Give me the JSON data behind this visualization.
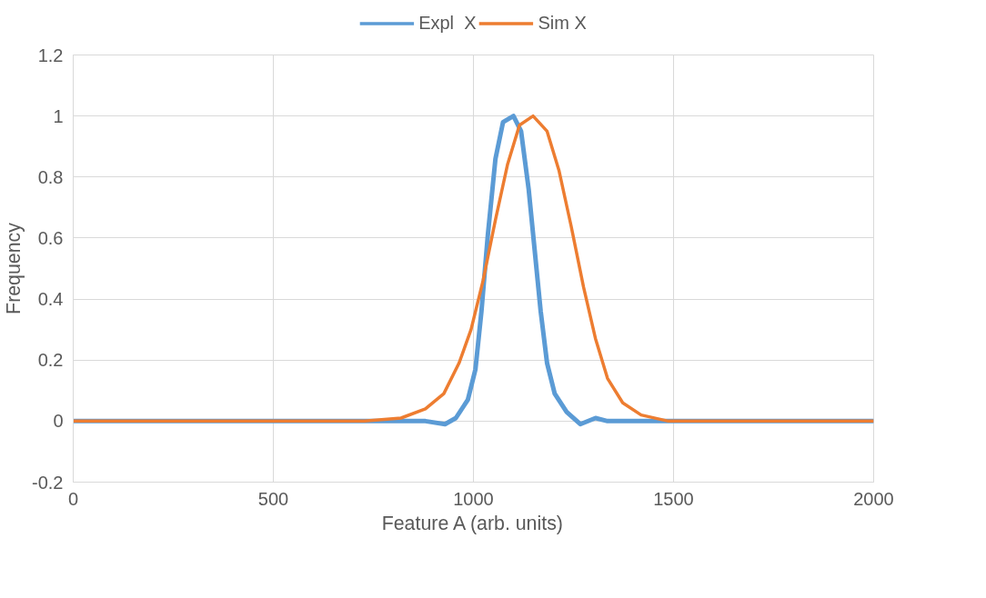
{
  "chart_data": {
    "type": "line",
    "xlabel": "Feature A (arb. units)",
    "ylabel": "Frequency",
    "xlim": [
      0,
      2000
    ],
    "xticks": [
      0,
      500,
      1000,
      1500,
      2000
    ],
    "ylim": [
      -0.2,
      1.2
    ],
    "yticks": [
      -0.2,
      0,
      0.2,
      0.4,
      0.6,
      0.8,
      1,
      1.2
    ],
    "grid": true,
    "legend": "top",
    "line_style": "solid",
    "marker": "none",
    "series": [
      {
        "name": "Expl  X",
        "color": "#5b9bd5",
        "x": [
          0,
          500,
          880,
          929,
          956,
          986,
          1005,
          1020,
          1036,
          1055,
          1074,
          1100,
          1119,
          1138,
          1153,
          1168,
          1184,
          1203,
          1233,
          1267,
          1305,
          1335,
          1500,
          2000
        ],
        "values": [
          0,
          0,
          0,
          -0.01,
          0.01,
          0.07,
          0.17,
          0.36,
          0.61,
          0.86,
          0.98,
          1.0,
          0.95,
          0.76,
          0.56,
          0.36,
          0.19,
          0.09,
          0.03,
          -0.01,
          0.01,
          0,
          0,
          0
        ]
      },
      {
        "name": "Sim X",
        "color": "#ed7d31",
        "x": [
          0,
          500,
          728,
          819,
          880,
          926,
          964,
          994,
          1024,
          1055,
          1085,
          1115,
          1149,
          1184,
          1214,
          1244,
          1275,
          1305,
          1335,
          1373,
          1419,
          1487,
          1600,
          2000
        ],
        "values": [
          0,
          0,
          0,
          0.01,
          0.04,
          0.09,
          0.19,
          0.3,
          0.46,
          0.66,
          0.84,
          0.97,
          1.0,
          0.95,
          0.82,
          0.64,
          0.44,
          0.27,
          0.14,
          0.06,
          0.02,
          0,
          0,
          0
        ]
      }
    ]
  }
}
